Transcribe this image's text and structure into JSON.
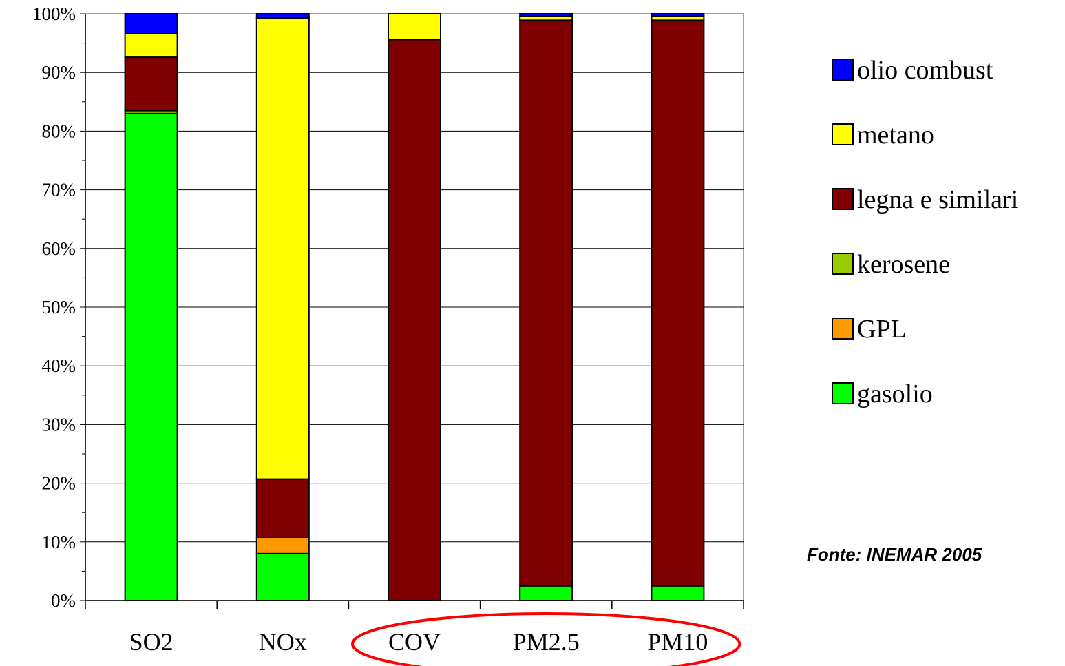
{
  "chart_data": {
    "type": "bar",
    "stacked": true,
    "percent_stacked": true,
    "categories": [
      "SO2",
      "NOx",
      "COV",
      "PM2.5",
      "PM10"
    ],
    "series": [
      {
        "name": "gasolio",
        "color": "#00ff00",
        "values": [
          83.0,
          8.0,
          0.0,
          2.5,
          2.5
        ]
      },
      {
        "name": "GPL",
        "color": "#ff9900",
        "values": [
          0.0,
          2.8,
          0.0,
          0.0,
          0.0
        ]
      },
      {
        "name": "kerosene",
        "color": "#99cc00",
        "values": [
          0.5,
          0.0,
          0.0,
          0.0,
          0.0
        ]
      },
      {
        "name": "legna e similari",
        "color": "#800000",
        "values": [
          9.1,
          9.9,
          95.6,
          96.4,
          96.4
        ]
      },
      {
        "name": "metano",
        "color": "#ffff00",
        "values": [
          4.0,
          78.6,
          4.4,
          0.7,
          0.7
        ]
      },
      {
        "name": "olio combust",
        "color": "#0000ff",
        "values": [
          3.4,
          0.7,
          0.0,
          0.4,
          0.4
        ]
      }
    ],
    "legend_order": [
      "olio combust",
      "metano",
      "legna e similari",
      "kerosene",
      "GPL",
      "gasolio"
    ],
    "legend_position": "right",
    "ylim": [
      0,
      100
    ],
    "yticks": [
      "0%",
      "10%",
      "20%",
      "30%",
      "40%",
      "50%",
      "60%",
      "70%",
      "80%",
      "90%",
      "100%"
    ],
    "grid": true,
    "highlight": {
      "shape": "ellipse",
      "color": "#ff0000",
      "categories": [
        "COV",
        "PM2.5",
        "PM10"
      ]
    }
  },
  "source_note": "Fonte: INEMAR 2005"
}
